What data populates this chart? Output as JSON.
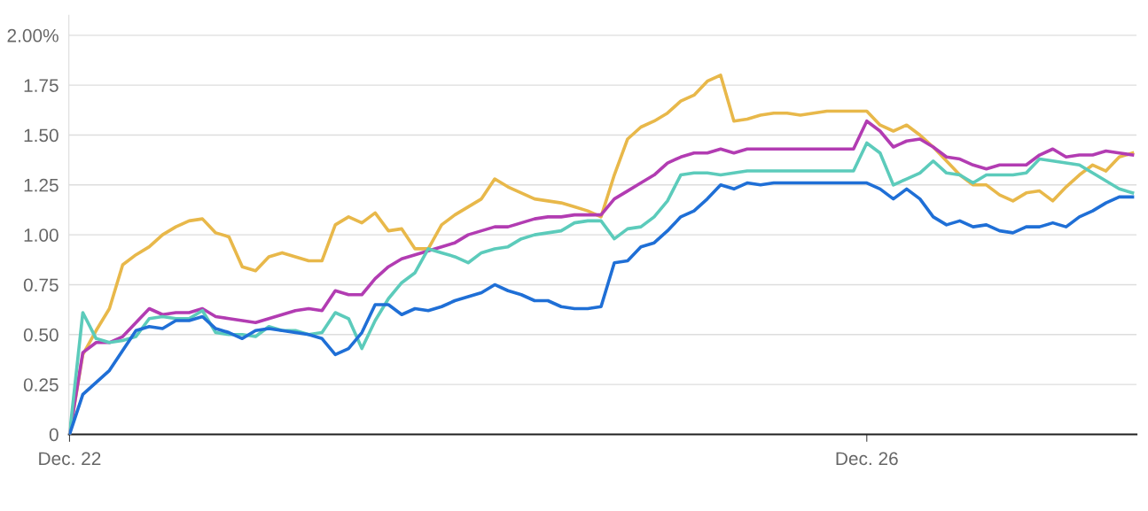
{
  "chart_data": {
    "type": "line",
    "categories": [
      "Dec. 22",
      null,
      null,
      null,
      null,
      null,
      null,
      null,
      null,
      null,
      null,
      null,
      null,
      null,
      null,
      null,
      null,
      null,
      null,
      null,
      null,
      null,
      null,
      null,
      null,
      null,
      null,
      null,
      null,
      null,
      null,
      null,
      null,
      null,
      null,
      null,
      null,
      null,
      null,
      null,
      null,
      null,
      null,
      null,
      null,
      null,
      null,
      null,
      null,
      null,
      null,
      null,
      null,
      null,
      null,
      null,
      null,
      null,
      null,
      null,
      "Dec. 26",
      null,
      null,
      null,
      null,
      null,
      null,
      null,
      null,
      null,
      null,
      null,
      null,
      null,
      null,
      null,
      null,
      null,
      null,
      null,
      null
    ],
    "series": [
      {
        "color": "#e8b84a",
        "values": [
          0,
          0.4,
          0.52,
          0.63,
          0.85,
          0.9,
          0.94,
          1.0,
          1.04,
          1.07,
          1.08,
          1.01,
          0.99,
          0.84,
          0.82,
          0.89,
          0.91,
          0.89,
          0.87,
          0.87,
          1.05,
          1.09,
          1.06,
          1.11,
          1.02,
          1.03,
          0.93,
          0.93,
          1.05,
          1.1,
          1.14,
          1.18,
          1.28,
          1.24,
          1.21,
          1.18,
          1.17,
          1.16,
          1.14,
          1.12,
          1.09,
          1.3,
          1.48,
          1.54,
          1.57,
          1.61,
          1.67,
          1.7,
          1.77,
          1.8,
          1.57,
          1.58,
          1.6,
          1.61,
          1.61,
          1.6,
          1.61,
          1.62,
          1.62,
          1.62,
          1.62,
          1.55,
          1.52,
          1.55,
          1.5,
          1.44,
          1.37,
          1.3,
          1.25,
          1.25,
          1.2,
          1.17,
          1.21,
          1.22,
          1.17,
          1.24,
          1.3,
          1.35,
          1.32,
          1.39,
          1.41
        ]
      },
      {
        "color": "#b23cb2",
        "values": [
          0,
          0.41,
          0.46,
          0.46,
          0.49,
          0.56,
          0.63,
          0.6,
          0.61,
          0.61,
          0.63,
          0.59,
          0.58,
          0.57,
          0.56,
          0.58,
          0.6,
          0.62,
          0.63,
          0.62,
          0.72,
          0.7,
          0.7,
          0.78,
          0.84,
          0.88,
          0.9,
          0.92,
          0.94,
          0.96,
          1.0,
          1.02,
          1.04,
          1.04,
          1.06,
          1.08,
          1.09,
          1.09,
          1.1,
          1.1,
          1.1,
          1.18,
          1.22,
          1.26,
          1.3,
          1.36,
          1.39,
          1.41,
          1.41,
          1.43,
          1.41,
          1.43,
          1.43,
          1.43,
          1.43,
          1.43,
          1.43,
          1.43,
          1.43,
          1.43,
          1.57,
          1.52,
          1.44,
          1.47,
          1.48,
          1.44,
          1.39,
          1.38,
          1.35,
          1.33,
          1.35,
          1.35,
          1.35,
          1.4,
          1.43,
          1.39,
          1.4,
          1.4,
          1.42,
          1.41,
          1.4
        ]
      },
      {
        "color": "#5ccbbb",
        "values": [
          0,
          0.61,
          0.48,
          0.46,
          0.47,
          0.49,
          0.58,
          0.59,
          0.58,
          0.58,
          0.62,
          0.51,
          0.5,
          0.5,
          0.49,
          0.54,
          0.52,
          0.52,
          0.5,
          0.51,
          0.61,
          0.58,
          0.43,
          0.57,
          0.68,
          0.76,
          0.81,
          0.93,
          0.91,
          0.89,
          0.86,
          0.91,
          0.93,
          0.94,
          0.98,
          1.0,
          1.01,
          1.02,
          1.06,
          1.07,
          1.07,
          0.98,
          1.03,
          1.04,
          1.09,
          1.17,
          1.3,
          1.31,
          1.31,
          1.3,
          1.31,
          1.32,
          1.32,
          1.32,
          1.32,
          1.32,
          1.32,
          1.32,
          1.32,
          1.32,
          1.46,
          1.41,
          1.25,
          1.28,
          1.31,
          1.37,
          1.31,
          1.3,
          1.26,
          1.3,
          1.3,
          1.3,
          1.31,
          1.38,
          1.37,
          1.36,
          1.35,
          1.31,
          1.27,
          1.23,
          1.21
        ]
      },
      {
        "color": "#1f6fd6",
        "values": [
          0,
          0.2,
          0.26,
          0.32,
          0.42,
          0.52,
          0.54,
          0.53,
          0.57,
          0.57,
          0.59,
          0.53,
          0.51,
          0.48,
          0.52,
          0.53,
          0.52,
          0.51,
          0.5,
          0.48,
          0.4,
          0.43,
          0.51,
          0.65,
          0.65,
          0.6,
          0.63,
          0.62,
          0.64,
          0.67,
          0.69,
          0.71,
          0.75,
          0.72,
          0.7,
          0.67,
          0.67,
          0.64,
          0.63,
          0.63,
          0.64,
          0.86,
          0.87,
          0.94,
          0.96,
          1.02,
          1.09,
          1.12,
          1.18,
          1.25,
          1.23,
          1.26,
          1.25,
          1.26,
          1.26,
          1.26,
          1.26,
          1.26,
          1.26,
          1.26,
          1.26,
          1.23,
          1.18,
          1.23,
          1.18,
          1.09,
          1.05,
          1.07,
          1.04,
          1.05,
          1.02,
          1.01,
          1.04,
          1.04,
          1.06,
          1.04,
          1.09,
          1.12,
          1.16,
          1.19,
          1.19
        ]
      }
    ],
    "ylim": [
      0,
      2.1
    ],
    "yticks": [
      {
        "value": 0,
        "label": "0"
      },
      {
        "value": 0.25,
        "label": "0.25"
      },
      {
        "value": 0.5,
        "label": "0.50"
      },
      {
        "value": 0.75,
        "label": "0.75"
      },
      {
        "value": 1,
        "label": "1.00"
      },
      {
        "value": 1.25,
        "label": "1.25"
      },
      {
        "value": 1.5,
        "label": "1.50"
      },
      {
        "value": 1.75,
        "label": "1.75"
      },
      {
        "value": 2,
        "label": "2.00%"
      }
    ],
    "grid": "y"
  }
}
